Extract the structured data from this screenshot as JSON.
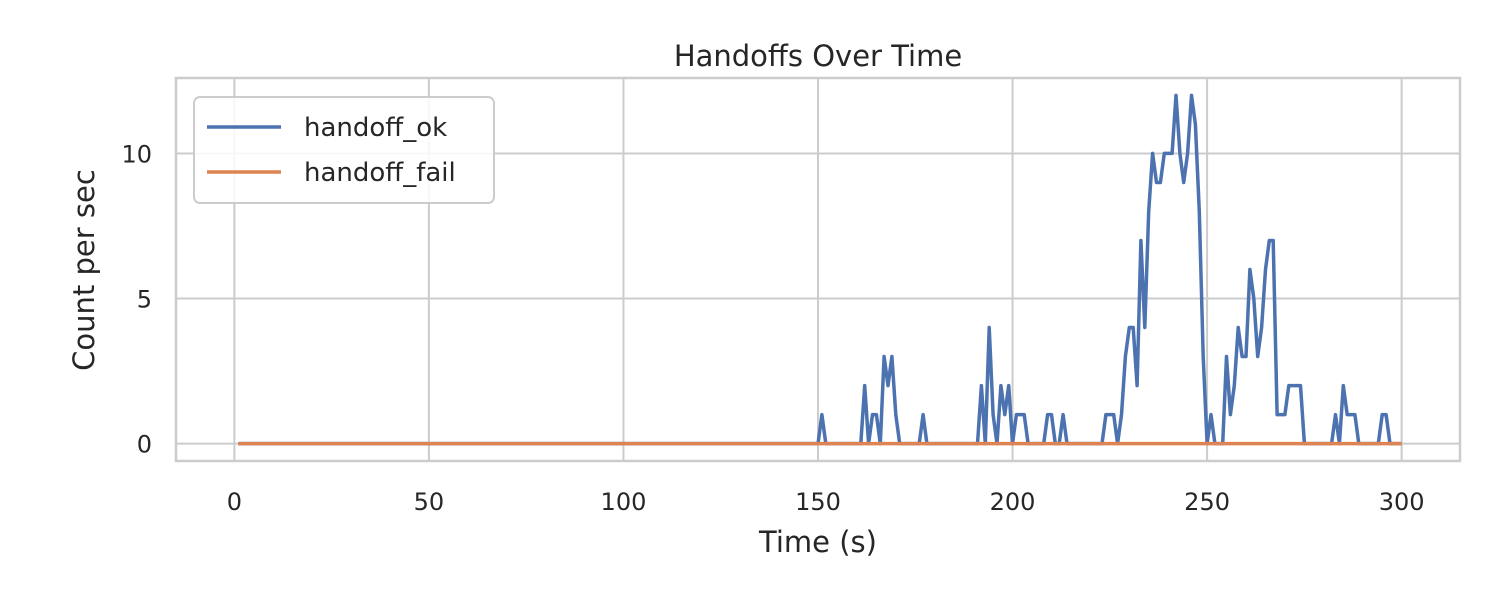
{
  "chart_data": {
    "type": "line",
    "title": "Handoffs Over Time",
    "xlabel": "Time (s)",
    "ylabel": "Count per sec",
    "xlim": [
      -15,
      315
    ],
    "ylim": [
      -0.6,
      12.6
    ],
    "xticks": [
      0,
      50,
      100,
      150,
      200,
      250,
      300
    ],
    "yticks": [
      0,
      5,
      10
    ],
    "grid": true,
    "legend_position": "top-left",
    "series": [
      {
        "name": "handoff_ok",
        "color": "#4c72b0",
        "points": [
          [
            1,
            0
          ],
          [
            150,
            0
          ],
          [
            151,
            1
          ],
          [
            152,
            0
          ],
          [
            161,
            0
          ],
          [
            162,
            2
          ],
          [
            163,
            0
          ],
          [
            164,
            1
          ],
          [
            165,
            1
          ],
          [
            166,
            0
          ],
          [
            167,
            3
          ],
          [
            168,
            2
          ],
          [
            169,
            3
          ],
          [
            170,
            1
          ],
          [
            171,
            0
          ],
          [
            176,
            0
          ],
          [
            177,
            1
          ],
          [
            178,
            0
          ],
          [
            191,
            0
          ],
          [
            192,
            2
          ],
          [
            193,
            0
          ],
          [
            194,
            4
          ],
          [
            195,
            1
          ],
          [
            196,
            0
          ],
          [
            197,
            2
          ],
          [
            198,
            1
          ],
          [
            199,
            2
          ],
          [
            200,
            0
          ],
          [
            201,
            1
          ],
          [
            202,
            1
          ],
          [
            203,
            1
          ],
          [
            204,
            0
          ],
          [
            208,
            0
          ],
          [
            209,
            1
          ],
          [
            210,
            1
          ],
          [
            211,
            0
          ],
          [
            212,
            0
          ],
          [
            213,
            1
          ],
          [
            214,
            0
          ],
          [
            223,
            0
          ],
          [
            224,
            1
          ],
          [
            225,
            1
          ],
          [
            226,
            1
          ],
          [
            227,
            0
          ],
          [
            228,
            1
          ],
          [
            229,
            3
          ],
          [
            230,
            4
          ],
          [
            231,
            4
          ],
          [
            232,
            2
          ],
          [
            233,
            7
          ],
          [
            234,
            4
          ],
          [
            235,
            8
          ],
          [
            236,
            10
          ],
          [
            237,
            9
          ],
          [
            238,
            9
          ],
          [
            239,
            10
          ],
          [
            240,
            10
          ],
          [
            241,
            10
          ],
          [
            242,
            12
          ],
          [
            243,
            10
          ],
          [
            244,
            9
          ],
          [
            245,
            10
          ],
          [
            246,
            12
          ],
          [
            247,
            11
          ],
          [
            248,
            8
          ],
          [
            249,
            3
          ],
          [
            250,
            0
          ],
          [
            251,
            1
          ],
          [
            252,
            0
          ],
          [
            254,
            0
          ],
          [
            255,
            3
          ],
          [
            256,
            1
          ],
          [
            257,
            2
          ],
          [
            258,
            4
          ],
          [
            259,
            3
          ],
          [
            260,
            3
          ],
          [
            261,
            6
          ],
          [
            262,
            5
          ],
          [
            263,
            3
          ],
          [
            264,
            4
          ],
          [
            265,
            6
          ],
          [
            266,
            7
          ],
          [
            267,
            7
          ],
          [
            268,
            1
          ],
          [
            269,
            1
          ],
          [
            270,
            1
          ],
          [
            271,
            2
          ],
          [
            272,
            2
          ],
          [
            273,
            2
          ],
          [
            274,
            2
          ],
          [
            275,
            0
          ],
          [
            282,
            0
          ],
          [
            283,
            1
          ],
          [
            284,
            0
          ],
          [
            285,
            2
          ],
          [
            286,
            1
          ],
          [
            287,
            1
          ],
          [
            288,
            1
          ],
          [
            289,
            0
          ],
          [
            294,
            0
          ],
          [
            295,
            1
          ],
          [
            296,
            1
          ],
          [
            297,
            0
          ],
          [
            300,
            0
          ]
        ]
      },
      {
        "name": "handoff_fail",
        "color": "#dd8452",
        "points": [
          [
            1,
            0
          ],
          [
            300,
            0
          ]
        ]
      }
    ]
  },
  "colors": {
    "grid": "#cccccc",
    "frame": "#cccccc",
    "text": "#262626"
  }
}
